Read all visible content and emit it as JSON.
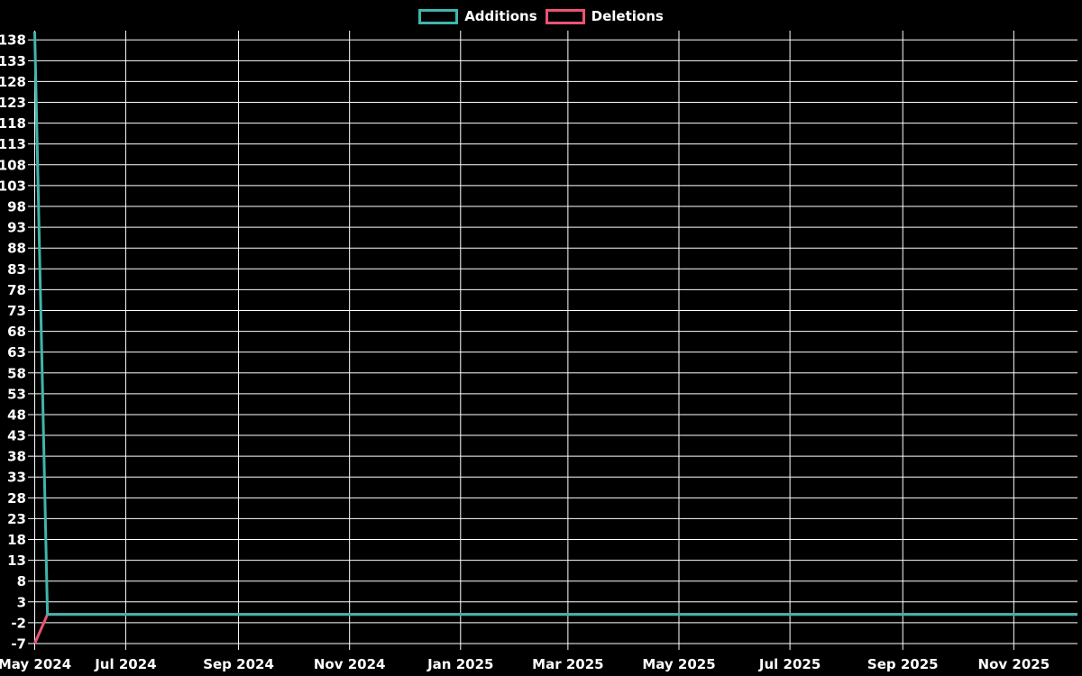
{
  "legend": [
    {
      "label": "Additions",
      "color": "#40b5ab"
    },
    {
      "label": "Deletions",
      "color": "#ea5374"
    }
  ],
  "chart_data": {
    "type": "line",
    "title": "",
    "background": "#000000",
    "grid": true,
    "grid_color": "#ffffff",
    "axis_color": "#ffffff",
    "legend_position": "top-center",
    "x_axis": {
      "type": "time",
      "min": "2024-05-12",
      "max": "2025-12-06",
      "ticks": [
        {
          "label": "May 2024",
          "date": "2024-05-12"
        },
        {
          "label": "Jul 2024",
          "date": "2024-07-01"
        },
        {
          "label": "Sep 2024",
          "date": "2024-09-01"
        },
        {
          "label": "Nov 2024",
          "date": "2024-11-01"
        },
        {
          "label": "Jan 2025",
          "date": "2025-01-01"
        },
        {
          "label": "Mar 2025",
          "date": "2025-03-01"
        },
        {
          "label": "May 2025",
          "date": "2025-05-01"
        },
        {
          "label": "Jul 2025",
          "date": "2025-07-01"
        },
        {
          "label": "Sep 2025",
          "date": "2025-09-01"
        },
        {
          "label": "Nov 2025",
          "date": "2025-11-01"
        }
      ]
    },
    "y_axis": {
      "min": -7,
      "max": 140,
      "tick_step": 5,
      "ticks": [
        138,
        133,
        128,
        123,
        118,
        113,
        108,
        103,
        98,
        93,
        88,
        83,
        78,
        73,
        68,
        63,
        58,
        53,
        48,
        43,
        38,
        33,
        28,
        23,
        18,
        13,
        8,
        3,
        -2,
        -7
      ]
    },
    "series": [
      {
        "name": "Additions",
        "color": "#40b5ab",
        "points": [
          {
            "date": "2024-05-12",
            "value": 140
          },
          {
            "date": "2024-05-19",
            "value": 0
          },
          {
            "date": "2025-12-06",
            "value": 0
          }
        ]
      },
      {
        "name": "Deletions",
        "color": "#ea5374",
        "points": [
          {
            "date": "2024-05-12",
            "value": -7
          },
          {
            "date": "2024-05-19",
            "value": 0
          },
          {
            "date": "2025-12-06",
            "value": 0
          }
        ]
      }
    ]
  }
}
